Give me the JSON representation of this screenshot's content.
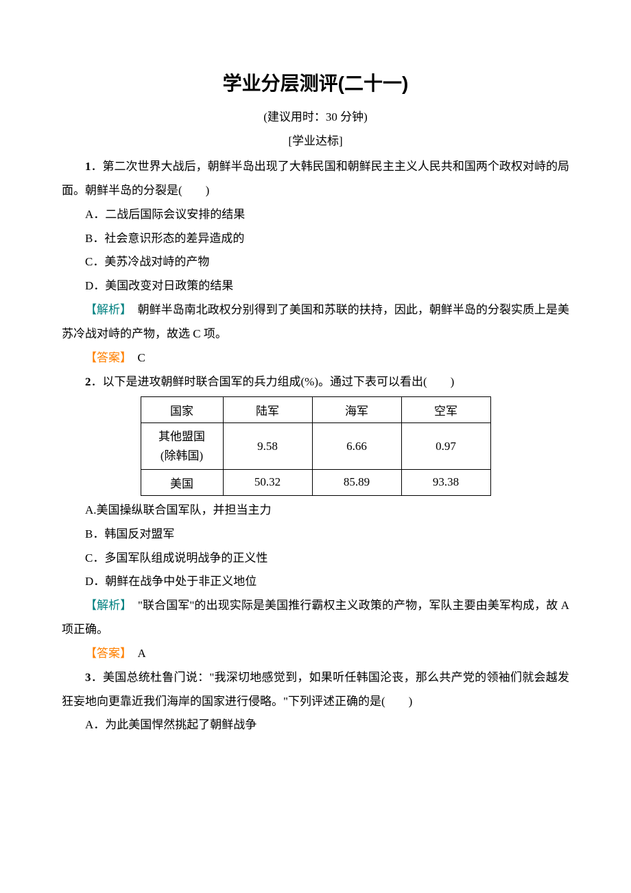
{
  "document": {
    "title": "学业分层测评(二十一)",
    "subtitle": "(建议用时：30 分钟)",
    "section_label": "[学业达标]",
    "colors": {
      "analysis_label": "#008080",
      "answer_label": "#ff8000",
      "text": "#000000",
      "background": "#ffffff",
      "table_border": "#000000"
    },
    "typography": {
      "title_fontsize": 28,
      "body_fontsize": 17,
      "line_height": 2.05,
      "title_font": "SimHei",
      "body_font": "SimSun"
    },
    "questions": [
      {
        "number": "1",
        "stem": "．第二次世界大战后，朝鲜半岛出现了大韩民国和朝鲜民主主义人民共和国两个政权对峙的局面。朝鲜半岛的分裂是(　　)",
        "options": {
          "A": "A．二战后国际会议安排的结果",
          "B": "B．社会意识形态的差异造成的",
          "C": "C．美苏冷战对峙的产物",
          "D": "D．美国改变对日政策的结果"
        },
        "analysis_label": "【解析】",
        "analysis_text": "　朝鲜半岛南北政权分别得到了美国和苏联的扶持，因此，朝鲜半岛的分裂实质上是美苏冷战对峙的产物，故选 C 项。",
        "answer_label": "【答案】",
        "answer_text": "　C"
      },
      {
        "number": "2",
        "stem": "．以下是进攻朝鲜时联合国军的兵力组成(%)。通过下表可以看出(　　)",
        "table": {
          "headers": [
            "国家",
            "陆军",
            "海军",
            "空军"
          ],
          "rows": [
            {
              "country_line1": "其他盟国",
              "country_line2": "(除韩国)",
              "values": [
                "9.58",
                "6.66",
                "0.97"
              ]
            },
            {
              "country_line1": "美国",
              "country_line2": "",
              "values": [
                "50.32",
                "85.89",
                "93.38"
              ]
            }
          ],
          "col_widths": {
            "country": 120,
            "value": 130
          },
          "border_color": "#000000"
        },
        "options": {
          "A": "A.美国操纵联合国军队，并担当主力",
          "B": "B．韩国反对盟军",
          "C": "C．多国军队组成说明战争的正义性",
          "D": "D．朝鲜在战争中处于非正义地位"
        },
        "analysis_label": "【解析】",
        "analysis_text": "　\"联合国军\"的出现实际是美国推行霸权主义政策的产物，军队主要由美军构成，故 A 项正确。",
        "answer_label": "【答案】",
        "answer_text": "　A"
      },
      {
        "number": "3",
        "stem": "．美国总统杜鲁门说：\"我深切地感觉到，如果听任韩国沦丧，那么共产党的领袖们就会越发狂妄地向更靠近我们海岸的国家进行侵略。\"下列评述正确的是(　　)",
        "options": {
          "A": "A．为此美国悍然挑起了朝鲜战争"
        }
      }
    ]
  }
}
